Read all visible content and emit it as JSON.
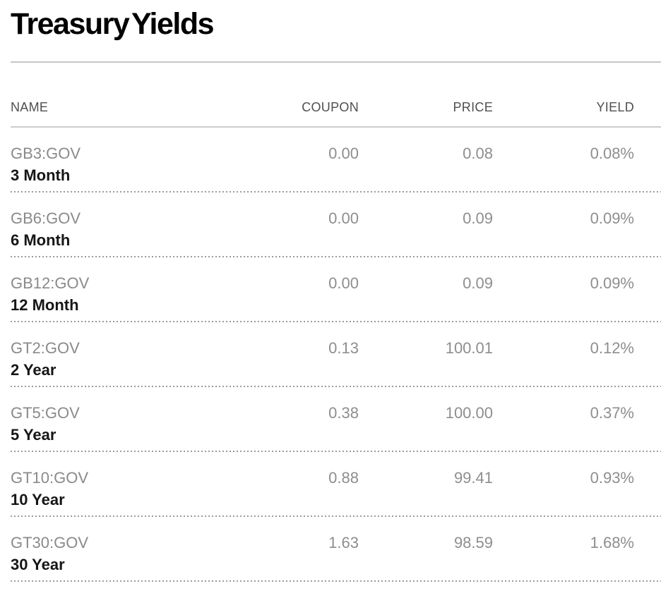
{
  "page": {
    "title": "Treasury Yields"
  },
  "colors": {
    "title_text": "#000000",
    "header_text": "#4f4f4f",
    "ticker_text": "#8a8a8a",
    "maturity_text": "#161616",
    "value_text": "#8e8e8e",
    "solid_divider": "#c6c6c6",
    "dotted_divider": "#9b9b9b",
    "background": "#ffffff"
  },
  "table": {
    "columns": [
      {
        "key": "name",
        "label": "NAME"
      },
      {
        "key": "coupon",
        "label": "COUPON"
      },
      {
        "key": "price",
        "label": "PRICE"
      },
      {
        "key": "yield",
        "label": "YIELD"
      }
    ],
    "rows": [
      {
        "ticker": "GB3:GOV",
        "maturity": "3 Month",
        "coupon": "0.00",
        "price": "0.08",
        "yield": "0.08%"
      },
      {
        "ticker": "GB6:GOV",
        "maturity": "6 Month",
        "coupon": "0.00",
        "price": "0.09",
        "yield": "0.09%"
      },
      {
        "ticker": "GB12:GOV",
        "maturity": "12 Month",
        "coupon": "0.00",
        "price": "0.09",
        "yield": "0.09%"
      },
      {
        "ticker": "GT2:GOV",
        "maturity": "2 Year",
        "coupon": "0.13",
        "price": "100.01",
        "yield": "0.12%"
      },
      {
        "ticker": "GT5:GOV",
        "maturity": "5 Year",
        "coupon": "0.38",
        "price": "100.00",
        "yield": "0.37%"
      },
      {
        "ticker": "GT10:GOV",
        "maturity": "10 Year",
        "coupon": "0.88",
        "price": "99.41",
        "yield": "0.93%"
      },
      {
        "ticker": "GT30:GOV",
        "maturity": "30 Year",
        "coupon": "1.63",
        "price": "98.59",
        "yield": "1.68%"
      }
    ]
  }
}
